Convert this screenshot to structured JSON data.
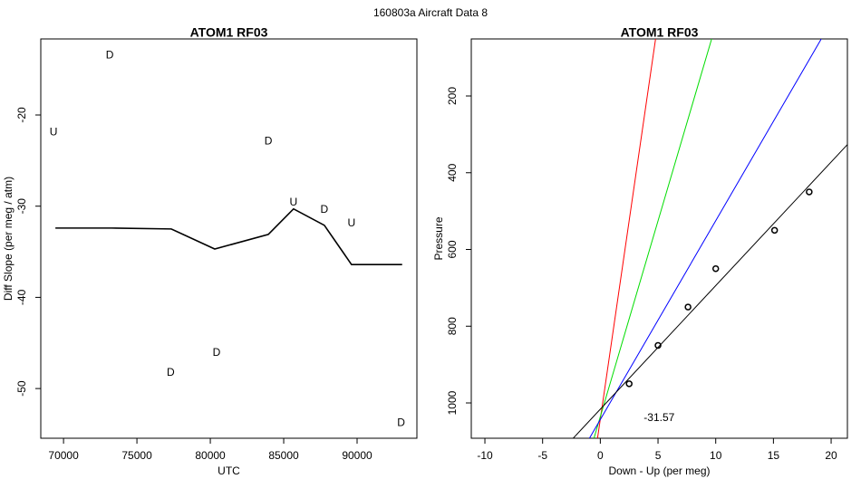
{
  "title": "160803a   Aircraft Data 8",
  "chart_data": [
    {
      "type": "line",
      "title": "ATOM1 RF03",
      "x_label": "UTC",
      "y_label": "Diff Slope (per meg / atm)",
      "x": [
        69445,
        73270,
        77340,
        80300,
        83950,
        85670,
        87770,
        89620,
        93070
      ],
      "series": [
        {
          "color": "#000000",
          "values": [
            -32.4,
            -32.4,
            -32.5,
            -34.7,
            -33.1,
            -30.3,
            -32.1,
            -36.4,
            -36.4
          ]
        }
      ],
      "points": [
        {
          "label": "D",
          "x": 73150,
          "y": -13.5,
          "color": "#0000ff"
        },
        {
          "label": "U",
          "x": 69320,
          "y": -21.9,
          "color": "#ff0000"
        },
        {
          "label": "D",
          "x": 83950,
          "y": -22.9,
          "color": "#0000ff"
        },
        {
          "label": "U",
          "x": 85670,
          "y": -29.6,
          "color": "#ff0000"
        },
        {
          "label": "D",
          "x": 87770,
          "y": -30.4,
          "color": "#0000ff"
        },
        {
          "label": "U",
          "x": 89620,
          "y": -31.9,
          "color": "#ff0000"
        },
        {
          "label": "D",
          "x": 80430,
          "y": -46.1,
          "color": "#0000ff"
        },
        {
          "label": "D",
          "x": 77300,
          "y": -48.3,
          "color": "#0000ff"
        },
        {
          "label": "D",
          "x": 93000,
          "y": -53.8,
          "color": "#0000ff"
        }
      ],
      "xlim": [
        68450,
        94075
      ],
      "xticks": [
        70000,
        75000,
        80000,
        85000,
        90000
      ],
      "ylim": [
        -55.45,
        -11.66
      ],
      "yticks": [
        -50,
        -40,
        -30,
        -20
      ]
    },
    {
      "type": "scatter",
      "title": "ATOM1 RF03",
      "x_label": "Down - Up (per meg)",
      "y_label": "Pressure",
      "x": [
        2.5,
        5.0,
        7.6,
        10.0,
        15.1,
        18.1
      ],
      "values": [
        950,
        850,
        750,
        650,
        550,
        450
      ],
      "color": "#000000",
      "lines": [
        {
          "color": "#ff0000",
          "x": [
            -0.24,
            4.79
          ],
          "values": [
            1092,
            51
          ]
        },
        {
          "color": "#00dd00",
          "x": [
            -0.55,
            9.65
          ],
          "values": [
            1092,
            51
          ]
        },
        {
          "color": "#0000ff",
          "x": [
            -0.94,
            19.15
          ],
          "values": [
            1092,
            51
          ]
        },
        {
          "color": "#000000",
          "x": [
            -2.35,
            21.4
          ],
          "values": [
            1092,
            327
          ]
        }
      ],
      "annotation": {
        "text": "-31.57",
        "x": 5.1,
        "y": 1040
      },
      "xlim": [
        -11.18,
        21.41
      ],
      "xticks": [
        -10,
        -5,
        0,
        5,
        10,
        15,
        20
      ],
      "ylim": [
        1092,
        51.3
      ],
      "yticks": [
        200,
        400,
        600,
        800,
        1000
      ]
    }
  ]
}
